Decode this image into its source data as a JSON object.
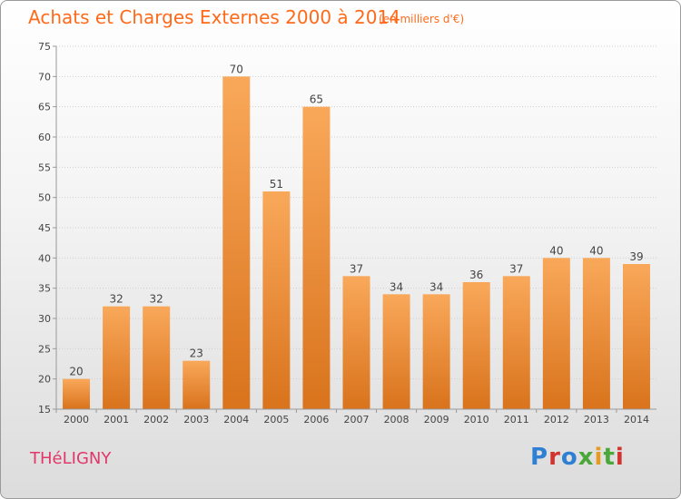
{
  "header": {
    "title": "Achats et Charges Externes 2000 à 2014",
    "subtitle": "(en milliers d'€)"
  },
  "footer": {
    "place": "THéLIGNY",
    "logo": "Proxiti"
  },
  "colors": {
    "title": "#ff6a1a",
    "place": "#e0386a",
    "bar_light": "#f9a85a",
    "bar_dark": "#e07a22",
    "logo_letters": [
      "#2f7fd3",
      "#d2332e",
      "#2f7fd3",
      "#4aa83a",
      "#e89a1f",
      "#4aa83a",
      "#d2332e"
    ]
  },
  "chart_data": {
    "type": "bar",
    "categories": [
      "2000",
      "2001",
      "2002",
      "2003",
      "2004",
      "2005",
      "2006",
      "2007",
      "2008",
      "2009",
      "2010",
      "2011",
      "2012",
      "2013",
      "2014"
    ],
    "values": [
      20,
      32,
      32,
      23,
      70,
      51,
      65,
      37,
      34,
      34,
      36,
      37,
      40,
      40,
      39
    ],
    "title": "Achats et Charges Externes 2000 à 2014",
    "ylim": [
      15,
      75
    ],
    "yticks": [
      15,
      20,
      25,
      30,
      35,
      40,
      45,
      50,
      55,
      60,
      65,
      70,
      75
    ],
    "grid": true
  }
}
